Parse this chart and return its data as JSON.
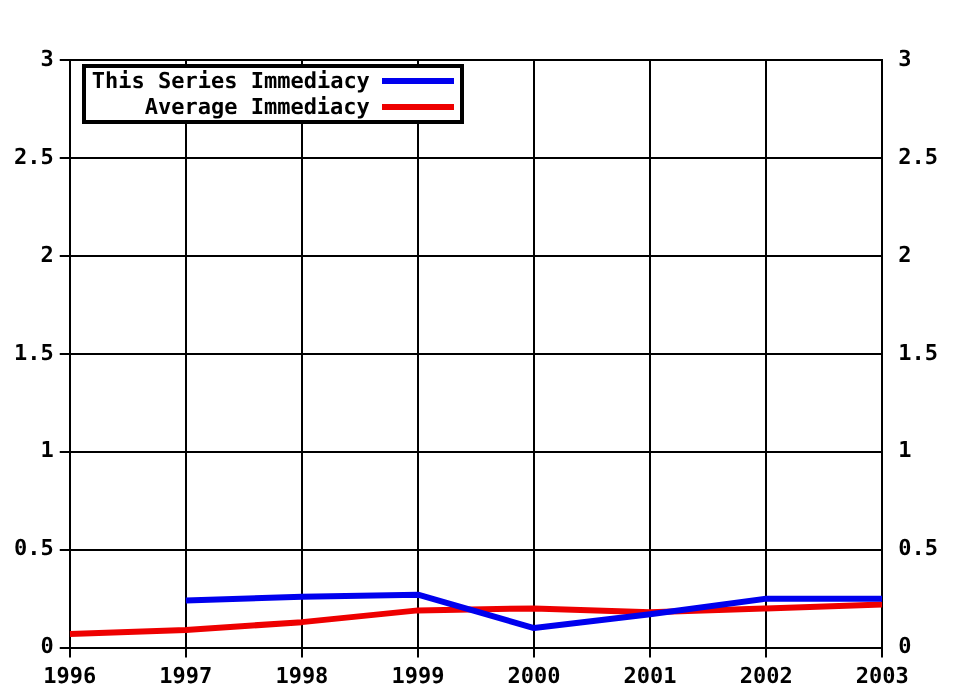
{
  "chart_data": {
    "type": "line",
    "x": [
      1996,
      1997,
      1998,
      1999,
      2000,
      2001,
      2002,
      2003
    ],
    "series": [
      {
        "name": "This Series Immediacy",
        "color": "#0000ee",
        "values": [
          null,
          0.24,
          0.26,
          0.27,
          0.1,
          0.17,
          0.25,
          0.25
        ]
      },
      {
        "name": "Average Immediacy",
        "color": "#ee0000",
        "values": [
          0.07,
          0.09,
          0.13,
          0.19,
          0.2,
          0.18,
          0.2,
          0.22
        ]
      }
    ],
    "xlim": [
      1996,
      2003
    ],
    "xticks": [
      1996,
      1997,
      1998,
      1999,
      2000,
      2001,
      2002,
      2003
    ],
    "ylim": [
      0,
      3
    ],
    "yticks": [
      0,
      0.5,
      1,
      1.5,
      2,
      2.5,
      3
    ],
    "y2lim": [
      0,
      3
    ],
    "y2ticks": [
      0,
      0.5,
      1,
      1.5,
      2,
      2.5,
      3
    ],
    "grid": true,
    "legend": "top left",
    "marker": "none",
    "line_style": "solid"
  }
}
